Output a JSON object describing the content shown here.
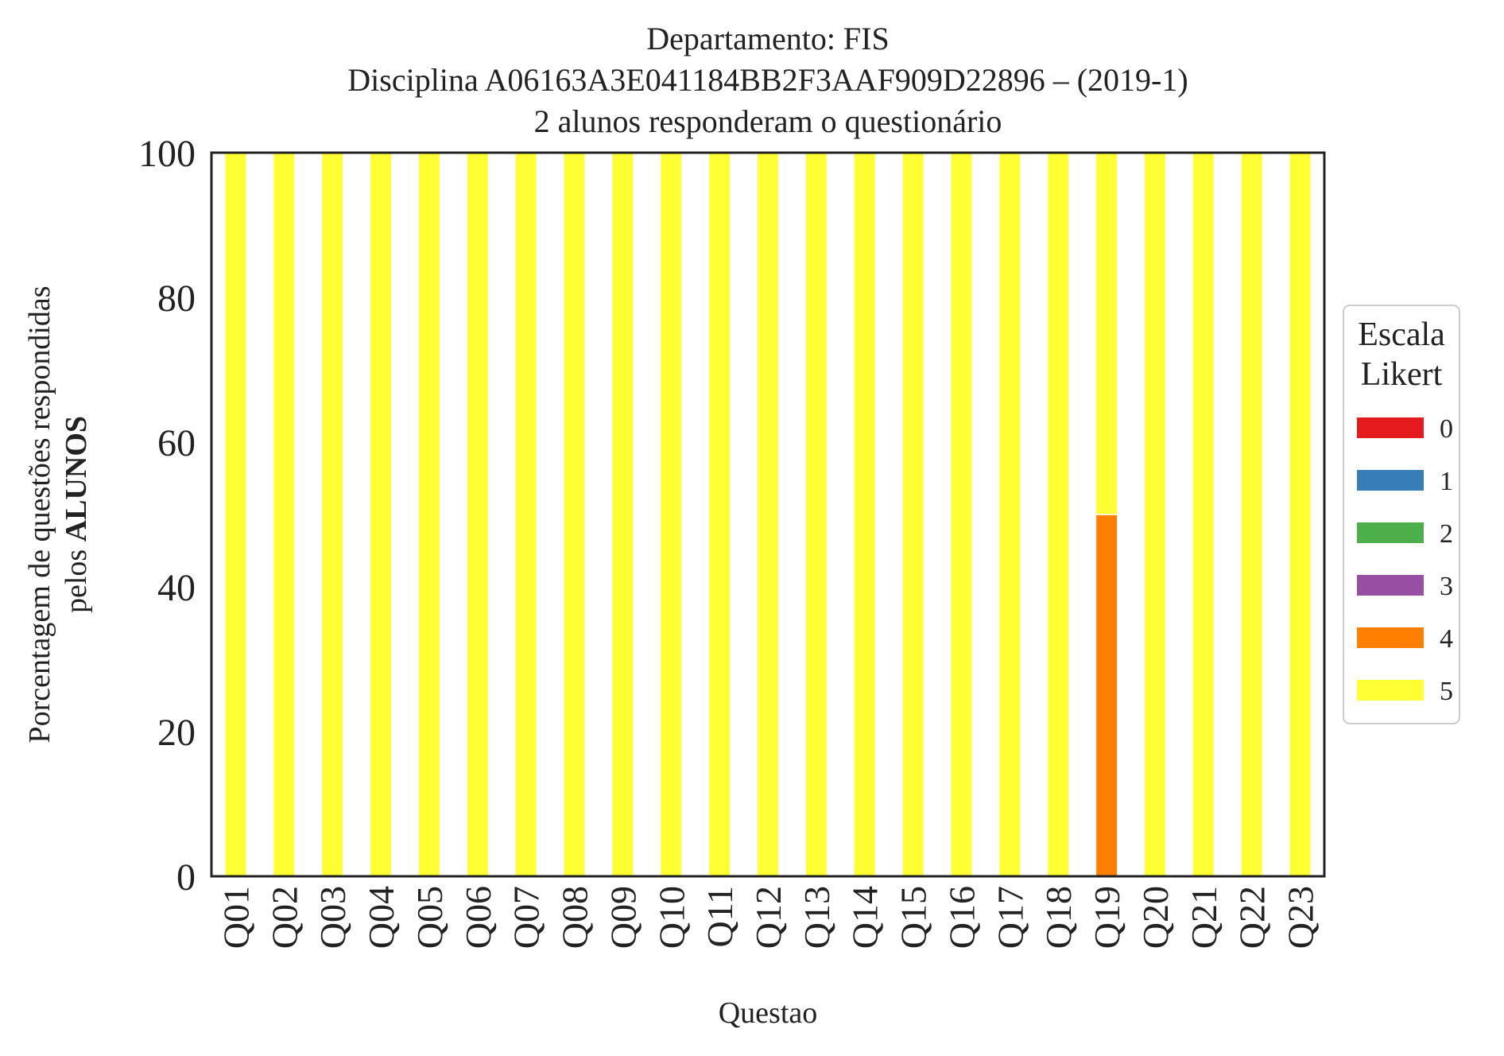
{
  "chart_data": {
    "type": "bar",
    "stacked": true,
    "title_lines": [
      "Departamento: FIS",
      "Disciplina A06163A3E041184BB2F3AAF909D22896 – (2019-1)",
      "2 alunos responderam o questionário"
    ],
    "xlabel": "Questao",
    "ylabel_line1": "Porcentagem de questões respondidas",
    "ylabel_line2_prefix": "pelos ",
    "ylabel_line2_bold": "ALUNOS",
    "ylim": [
      0,
      100
    ],
    "yticks": [
      0,
      20,
      40,
      60,
      80,
      100
    ],
    "grid": false,
    "legend_title_lines": [
      "Escala",
      "Likert"
    ],
    "legend_placement": "right",
    "categories": [
      "Q01",
      "Q02",
      "Q03",
      "Q04",
      "Q05",
      "Q06",
      "Q07",
      "Q08",
      "Q09",
      "Q10",
      "Q11",
      "Q12",
      "Q13",
      "Q14",
      "Q15",
      "Q16",
      "Q17",
      "Q18",
      "Q19",
      "Q20",
      "Q21",
      "Q22",
      "Q23"
    ],
    "series": [
      {
        "name": "0",
        "color": "#e41a1c",
        "values": [
          0,
          0,
          0,
          0,
          0,
          0,
          0,
          0,
          0,
          0,
          0,
          0,
          0,
          0,
          0,
          0,
          0,
          0,
          0,
          0,
          0,
          0,
          0
        ]
      },
      {
        "name": "1",
        "color": "#377eb8",
        "values": [
          0,
          0,
          0,
          0,
          0,
          0,
          0,
          0,
          0,
          0,
          0,
          0,
          0,
          0,
          0,
          0,
          0,
          0,
          0,
          0,
          0,
          0,
          0
        ]
      },
      {
        "name": "2",
        "color": "#4daf4a",
        "values": [
          0,
          0,
          0,
          0,
          0,
          0,
          0,
          0,
          0,
          0,
          0,
          0,
          0,
          0,
          0,
          0,
          0,
          0,
          0,
          0,
          0,
          0,
          0
        ]
      },
      {
        "name": "3",
        "color": "#984ea3",
        "values": [
          0,
          0,
          0,
          0,
          0,
          0,
          0,
          0,
          0,
          0,
          0,
          0,
          0,
          0,
          0,
          0,
          0,
          0,
          0,
          0,
          0,
          0,
          0
        ]
      },
      {
        "name": "4",
        "color": "#ff7f00",
        "values": [
          0,
          0,
          0,
          0,
          0,
          0,
          0,
          0,
          0,
          0,
          0,
          0,
          0,
          0,
          0,
          0,
          0,
          0,
          50,
          0,
          0,
          0,
          0
        ]
      },
      {
        "name": "5",
        "color": "#ffff33",
        "values": [
          100,
          100,
          100,
          100,
          100,
          100,
          100,
          100,
          100,
          100,
          100,
          100,
          100,
          100,
          100,
          100,
          100,
          100,
          50,
          100,
          100,
          100,
          100
        ]
      }
    ]
  }
}
